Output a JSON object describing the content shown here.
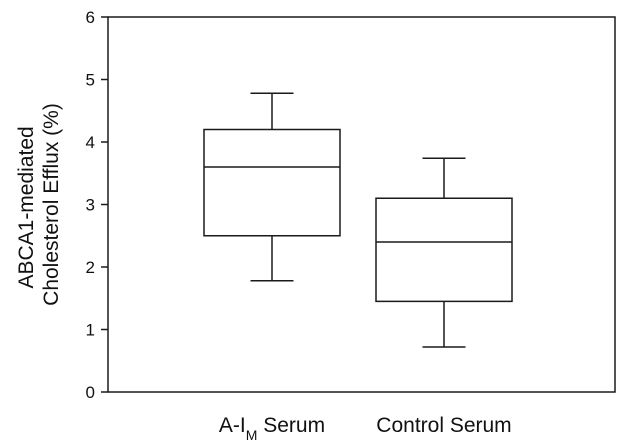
{
  "chart_data": {
    "type": "box",
    "ylabel_lines": [
      "ABCA1-mediated",
      "Cholesterol Efflux (%)"
    ],
    "xlabel": "",
    "ylim": [
      0,
      6
    ],
    "yticks": [
      0,
      1,
      2,
      3,
      4,
      5,
      6
    ],
    "categories": [
      {
        "label_main": "A-I",
        "label_sub": "M",
        "label_rest": " Serum"
      },
      {
        "label_main": "Control Serum",
        "label_sub": "",
        "label_rest": ""
      }
    ],
    "boxes": [
      {
        "whisker_low": 1.78,
        "q1": 2.5,
        "median": 3.6,
        "q3": 4.2,
        "whisker_high": 4.78
      },
      {
        "whisker_low": 0.72,
        "q1": 1.45,
        "median": 2.4,
        "q3": 3.1,
        "whisker_high": 3.74
      }
    ],
    "grid": false,
    "colors": {
      "stroke": "#1a1a1a",
      "box_fill": "#ffffff"
    }
  }
}
